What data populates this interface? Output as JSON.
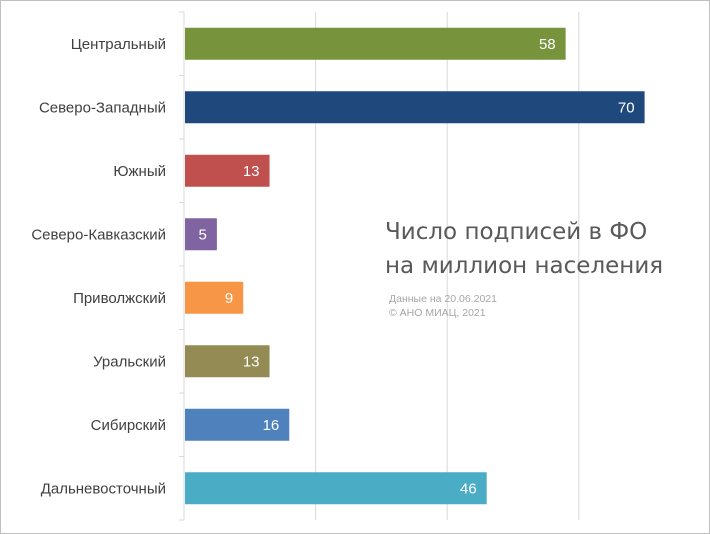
{
  "chart_data": {
    "type": "bar",
    "orientation": "horizontal",
    "title_lines": [
      "Число подписей в ФО",
      "на миллион населения"
    ],
    "note_lines": [
      "Данные на 20.06.2021",
      "© АНО МИАЦ, 2021"
    ],
    "categories": [
      "Центральный",
      "Северо-Западный",
      "Южный",
      "Северо-Кавказский",
      "Приволжский",
      "Уральский",
      "Сибирский",
      "Дальневосточный"
    ],
    "values": [
      58,
      70,
      13,
      5,
      9,
      13,
      16,
      46
    ],
    "colors": [
      "#77933c",
      "#1f497d",
      "#c0504d",
      "#8064a2",
      "#f79646",
      "#948a54",
      "#4f81bd",
      "#4bacc6"
    ],
    "xlim": [
      0,
      80
    ],
    "grid": true,
    "xlabel": "",
    "ylabel": ""
  }
}
